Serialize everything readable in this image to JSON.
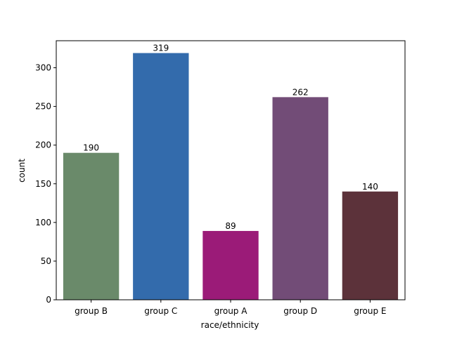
{
  "chart_data": {
    "type": "bar",
    "title": "",
    "xlabel": "race/ethnicity",
    "ylabel": "count",
    "categories": [
      "group B",
      "group C",
      "group A",
      "group D",
      "group E"
    ],
    "values": [
      190,
      319,
      89,
      262,
      140
    ],
    "colors": [
      "#6a8a6a",
      "#336bac",
      "#9b1b78",
      "#724c77",
      "#5c323a"
    ],
    "ylim": [
      0,
      334.95
    ],
    "yticks": [
      0,
      50,
      100,
      150,
      200,
      250,
      300
    ],
    "grid": false,
    "show_data_labels": true
  }
}
